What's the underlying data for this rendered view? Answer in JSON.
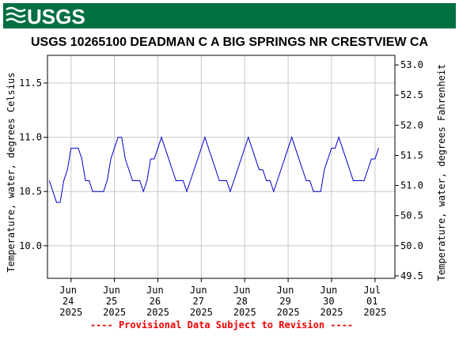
{
  "chart_data": {
    "type": "line",
    "logo": "USGS",
    "title": "USGS 10265100 DEADMAN C A BIG SPRINGS NR CRESTVIEW CA",
    "ylabel": "Temperature, water, degrees Celsius",
    "y2label": "Temperature, water, degrees Fahrenheit",
    "annotation": "---- Provisional Data Subject to Revision ----",
    "color": "#0000cc",
    "grid": true,
    "categories": [
      null,
      null,
      null,
      null,
      null,
      null,
      "Jun 24 2025",
      null,
      null,
      null,
      null,
      null,
      null,
      null,
      null,
      null,
      null,
      null,
      "Jun 25 2025",
      null,
      null,
      null,
      null,
      null,
      null,
      null,
      null,
      null,
      null,
      null,
      "Jun 26 2025",
      null,
      null,
      null,
      null,
      null,
      null,
      null,
      null,
      null,
      null,
      null,
      "Jun 27 2025",
      null,
      null,
      null,
      null,
      null,
      null,
      null,
      null,
      null,
      null,
      null,
      "Jun 28 2025",
      null,
      null,
      null,
      null,
      null,
      null,
      null,
      null,
      null,
      null,
      null,
      "Jun 29 2025",
      null,
      null,
      null,
      null,
      null,
      null,
      null,
      null,
      null,
      null,
      null,
      "Jun 30 2025",
      null,
      null,
      null,
      null,
      null,
      null,
      null,
      null,
      null,
      null,
      null,
      "Jul 01 2025",
      null,
      null,
      null,
      null,
      null
    ],
    "values": [
      10.6,
      10.5,
      10.4,
      10.4,
      10.6,
      10.7,
      10.9,
      10.9,
      10.9,
      10.8,
      10.6,
      10.6,
      10.5,
      10.5,
      10.5,
      10.5,
      10.6,
      10.8,
      10.9,
      11.0,
      11.0,
      10.8,
      10.7,
      10.6,
      10.6,
      10.6,
      10.5,
      10.6,
      10.8,
      10.8,
      10.9,
      11.0,
      10.9,
      10.8,
      10.7,
      10.6,
      10.6,
      10.6,
      10.5,
      10.6,
      10.7,
      10.8,
      10.9,
      11.0,
      10.9,
      10.8,
      10.7,
      10.6,
      10.6,
      10.6,
      10.5,
      10.6,
      10.7,
      10.8,
      10.9,
      11.0,
      10.9,
      10.8,
      10.7,
      10.7,
      10.6,
      10.6,
      10.5,
      10.6,
      10.7,
      10.8,
      10.9,
      11.0,
      10.9,
      10.8,
      10.7,
      10.6,
      10.6,
      10.5,
      10.5,
      10.5,
      10.7,
      10.8,
      10.9,
      10.9,
      11.0,
      10.9,
      10.8,
      10.7,
      10.6,
      10.6,
      10.6,
      10.6,
      10.7,
      10.8,
      10.8,
      10.9,
      null,
      null,
      null,
      null
    ],
    "ylim": [
      9.7,
      11.755
    ],
    "yticks": [
      {
        "value": 10,
        "label": "10.0"
      },
      10.5,
      {
        "value": 11,
        "label": "11.0"
      },
      11.5
    ],
    "y2lim": [
      49.46,
      53.159
    ],
    "y2ticks": [
      {
        "value": 49.5,
        "label": "49.5"
      },
      {
        "value": 50,
        "label": "50.0"
      },
      50.5,
      {
        "value": 51,
        "label": "51.0"
      },
      51.5,
      {
        "value": 52,
        "label": "52.0"
      },
      52.5,
      {
        "value": 53,
        "label": "53.0"
      }
    ]
  }
}
